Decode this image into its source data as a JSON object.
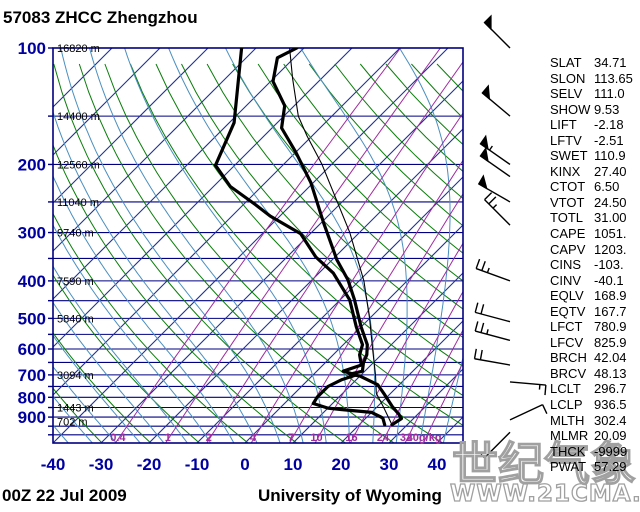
{
  "title": "57083 ZHCC Zhengzhou",
  "footer": {
    "datetime": "00Z 22 Jul 2009",
    "attribution": "University of Wyoming"
  },
  "watermark": {
    "line1": "世纪气象",
    "line2": "WWW.21CMA.NET"
  },
  "stats": [
    {
      "label": "SLAT",
      "value": "34.71"
    },
    {
      "label": "SLON",
      "value": "113.65"
    },
    {
      "label": "SELV",
      "value": "111.0"
    },
    {
      "label": "SHOW",
      "value": "9.53"
    },
    {
      "label": "LIFT",
      "value": "-2.18"
    },
    {
      "label": "LFTV",
      "value": "-2.51"
    },
    {
      "label": "SWET",
      "value": "110.9"
    },
    {
      "label": "KINX",
      "value": "27.40"
    },
    {
      "label": "CTOT",
      "value": "6.50"
    },
    {
      "label": "VTOT",
      "value": "24.50"
    },
    {
      "label": "TOTL",
      "value": "31.00"
    },
    {
      "label": "CAPE",
      "value": "1051."
    },
    {
      "label": "CAPV",
      "value": "1203."
    },
    {
      "label": "CINS",
      "value": "-103."
    },
    {
      "label": "CINV",
      "value": "-40.1"
    },
    {
      "label": "EQLV",
      "value": "168.9"
    },
    {
      "label": "EQTV",
      "value": "167.7"
    },
    {
      "label": "LFCT",
      "value": "780.9"
    },
    {
      "label": "LFCV",
      "value": "825.9"
    },
    {
      "label": "BRCH",
      "value": "42.04"
    },
    {
      "label": "BRCV",
      "value": "48.13"
    },
    {
      "label": "LCLT",
      "value": "296.7"
    },
    {
      "label": "LCLP",
      "value": "936.5"
    },
    {
      "label": "MLTH",
      "value": "302.4"
    },
    {
      "label": "MLMR",
      "value": "20.09"
    },
    {
      "label": "THCK",
      "value": "-9999"
    },
    {
      "label": "PWAT",
      "value": "57.29"
    }
  ],
  "colors": {
    "axis_label": "#0000a0",
    "isobar": "#000080",
    "isotherm": "#20309a",
    "dry_adiabat": "#0a7d0a",
    "moist_adiabat": "#4a8fbf",
    "mixing_ratio": "#a02ca0",
    "trace": "#000000",
    "watermark": "#a0a0a0"
  },
  "chart_data": {
    "type": "line",
    "title": "Skew-T log-P sounding",
    "x_axis": {
      "label_unit": "degC",
      "ticks": [
        -40,
        -30,
        -20,
        -10,
        0,
        10,
        20,
        30,
        40
      ]
    },
    "y_axis": {
      "label_unit": "hPa",
      "ticks": [
        100,
        200,
        300,
        400,
        500,
        600,
        700,
        800,
        900
      ],
      "range": [
        100,
        1050
      ],
      "scale": "log"
    },
    "height_labels": [
      {
        "p": 100,
        "label": "16820 m"
      },
      {
        "p": 150,
        "label": "14400 m"
      },
      {
        "p": 200,
        "label": "12560 m"
      },
      {
        "p": 250,
        "label": "11040 m"
      },
      {
        "p": 300,
        "label": "9740 m"
      },
      {
        "p": 400,
        "label": "7590 m"
      },
      {
        "p": 500,
        "label": "5840 m"
      },
      {
        "p": 700,
        "label": "3094 m"
      },
      {
        "p": 850,
        "label": "1443 m"
      },
      {
        "p": 925,
        "label": "702 m"
      }
    ],
    "mixing_ratio_lines": {
      "values_g_kg": [
        0.4,
        1,
        2,
        4,
        7,
        10,
        16,
        24,
        32,
        40
      ],
      "labels": [
        "0.4",
        "1",
        "2",
        "4",
        "7",
        "10",
        "16",
        "24",
        "32",
        "40g/kg"
      ]
    },
    "isotherms_C": {
      "from": -110,
      "to": 40,
      "step": 10
    },
    "dry_adiabats_theta_K": {
      "from": 240,
      "to": 440,
      "step": 10
    },
    "moist_adiabats_thetaw_C": {
      "from": -60,
      "to": 40,
      "step": 5
    },
    "series": [
      {
        "name": "temperature",
        "width": 3.2,
        "points_p_T": [
          [
            100,
            -71.5
          ],
          [
            106,
            -73.5
          ],
          [
            122,
            -69.5
          ],
          [
            141,
            -62
          ],
          [
            161,
            -58
          ],
          [
            186,
            -50
          ],
          [
            223,
            -40.5
          ],
          [
            283,
            -29.5
          ],
          [
            353,
            -19
          ],
          [
            398,
            -12.5
          ],
          [
            448,
            -7
          ],
          [
            526,
            0
          ],
          [
            585,
            5
          ],
          [
            621,
            7
          ],
          [
            652,
            8
          ],
          [
            685,
            9.5
          ],
          [
            697,
            7.5
          ],
          [
            705,
            10
          ],
          [
            742,
            15.5
          ],
          [
            787,
            19
          ],
          [
            844,
            23
          ],
          [
            884,
            26
          ],
          [
            908,
            27.5
          ],
          [
            942,
            26.8
          ]
        ]
      },
      {
        "name": "dewpoint",
        "width": 3.2,
        "points_p_T": [
          [
            100,
            -83
          ],
          [
            156,
            -69
          ],
          [
            201,
            -64
          ],
          [
            228,
            -56.5
          ],
          [
            254,
            -47.5
          ],
          [
            272,
            -42
          ],
          [
            302,
            -32
          ],
          [
            347,
            -24
          ],
          [
            382,
            -17
          ],
          [
            448,
            -8
          ],
          [
            526,
            -1
          ],
          [
            585,
            4
          ],
          [
            621,
            5.5
          ],
          [
            660,
            8
          ],
          [
            685,
            5.5
          ],
          [
            700,
            9
          ],
          [
            720,
            7
          ],
          [
            750,
            5.5
          ],
          [
            800,
            5.5
          ],
          [
            830,
            6
          ],
          [
            853,
            10
          ],
          [
            860,
            13
          ],
          [
            875,
            20
          ],
          [
            905,
            23.5
          ],
          [
            942,
            25.3
          ]
        ]
      },
      {
        "name": "parcel",
        "width": 1.1,
        "points_p_T": [
          [
            942,
            27
          ],
          [
            936,
            26.5
          ],
          [
            850,
            21.5
          ],
          [
            781,
            17
          ],
          [
            700,
            13
          ],
          [
            600,
            7
          ],
          [
            500,
            0
          ],
          [
            400,
            -9
          ],
          [
            300,
            -22
          ],
          [
            250,
            -31
          ],
          [
            200,
            -42
          ],
          [
            169,
            -51
          ],
          [
            150,
            -57
          ],
          [
            120,
            -66
          ],
          [
            100,
            -73
          ]
        ]
      }
    ],
    "wind_barbs": [
      {
        "p": 100,
        "dir": 315,
        "kt": 50
      },
      {
        "p": 150,
        "dir": 310,
        "kt": 50
      },
      {
        "p": 200,
        "dir": 305,
        "kt": 55
      },
      {
        "p": 215,
        "dir": 305,
        "kt": 50
      },
      {
        "p": 250,
        "dir": 300,
        "kt": 50
      },
      {
        "p": 287,
        "dir": 315,
        "kt": 25
      },
      {
        "p": 400,
        "dir": 290,
        "kt": 25
      },
      {
        "p": 510,
        "dir": 285,
        "kt": 20
      },
      {
        "p": 570,
        "dir": 285,
        "kt": 25
      },
      {
        "p": 660,
        "dir": 280,
        "kt": 20
      },
      {
        "p": 730,
        "dir": 95,
        "kt": 15
      },
      {
        "p": 915,
        "dir": 65,
        "kt": 10
      },
      {
        "p": 985,
        "dir": 225,
        "kt": 5
      }
    ]
  }
}
